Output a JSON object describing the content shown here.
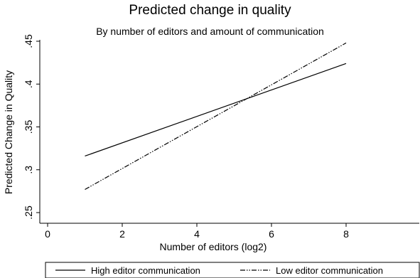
{
  "chart_data": {
    "type": "line",
    "title": "Predicted change in quality",
    "subtitle": "By number of editors and amount of communication",
    "xlabel": "Number of editors (log2)",
    "ylabel": "Predicted Change in Quality",
    "xlim": [
      0,
      10
    ],
    "ylim": [
      0.25,
      0.45
    ],
    "xticks": [
      0,
      2,
      4,
      6,
      8
    ],
    "xtick_labels": [
      "0",
      "2",
      "4",
      "6",
      "8"
    ],
    "yticks": [
      0.25,
      0.3,
      0.35,
      0.4,
      0.45
    ],
    "ytick_labels": [
      ".25",
      ".3",
      ".35",
      ".4",
      ".45"
    ],
    "grid": false,
    "legend_position": "bottom",
    "series": [
      {
        "name": "High editor communication",
        "style": "solid",
        "color": "#000000",
        "x": [
          1,
          8
        ],
        "y": [
          0.316,
          0.424
        ]
      },
      {
        "name": "Low editor communication",
        "style": "dash-dot-dot",
        "color": "#000000",
        "x": [
          1,
          8
        ],
        "y": [
          0.277,
          0.448
        ]
      }
    ]
  }
}
